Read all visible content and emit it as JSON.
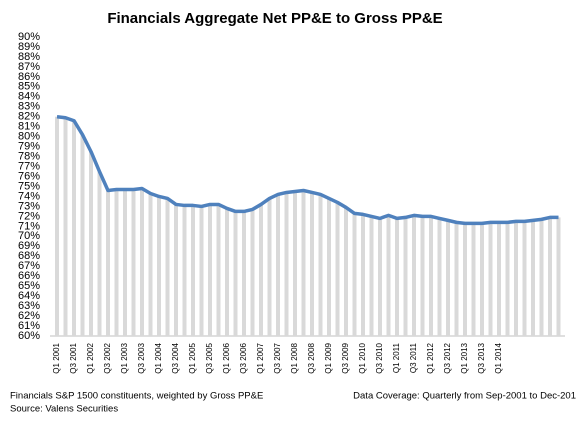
{
  "chart_data": {
    "type": "line",
    "title": "Financials  Aggregate  Net PP&E to Gross PP&E",
    "categories": [
      "Q1 2001",
      null,
      "Q3 2001",
      null,
      "Q1 2002",
      null,
      "Q3 2002",
      null,
      "Q1 2003",
      null,
      "Q3 2003",
      null,
      "Q1 2004",
      null,
      "Q3 2004",
      null,
      "Q1 2005",
      null,
      "Q3 2005",
      null,
      "Q1 2006",
      null,
      "Q3 2006",
      null,
      "Q1 2007",
      null,
      "Q3 2007",
      null,
      "Q1 2008",
      null,
      "Q3 2008",
      null,
      "Q1 2009",
      null,
      "Q3 2009",
      null,
      "Q1 2010",
      null,
      "Q3 2010",
      null,
      "Q1 2011",
      null,
      "Q3 2011",
      null,
      "Q1 2012",
      null,
      "Q3 2012",
      null,
      "Q1 2013",
      null,
      "Q3 2013",
      null,
      "Q1 2014",
      null,
      null,
      null,
      null,
      null,
      null,
      null
    ],
    "series": [
      {
        "name": "Net PP&E to Gross PP&E",
        "color": "#4f81bd",
        "values": [
          82.0,
          81.9,
          81.6,
          80.2,
          78.5,
          76.5,
          74.6,
          74.7,
          74.7,
          74.7,
          74.8,
          74.3,
          74.0,
          73.8,
          73.2,
          73.1,
          73.1,
          73.0,
          73.2,
          73.2,
          72.8,
          72.5,
          72.5,
          72.7,
          73.2,
          73.8,
          74.2,
          74.4,
          74.5,
          74.6,
          74.4,
          74.2,
          73.8,
          73.4,
          72.9,
          72.3,
          72.2,
          72.0,
          71.8,
          72.1,
          71.8,
          71.9,
          72.1,
          72.0,
          72.0,
          71.8,
          71.6,
          71.4,
          71.3,
          71.3,
          71.3,
          71.4,
          71.4,
          71.4,
          71.5,
          71.5,
          71.6,
          71.7,
          71.9,
          71.9
        ]
      }
    ],
    "fill_color": "#d9d9d9",
    "ylim": [
      60,
      90
    ],
    "yticks": [
      {
        "value": 60,
        "label": "60%"
      },
      {
        "value": 61,
        "label": "61%"
      },
      {
        "value": 62,
        "label": "62%"
      },
      {
        "value": 63,
        "label": "63%"
      },
      {
        "value": 64,
        "label": "64%"
      },
      {
        "value": 65,
        "label": "65%"
      },
      {
        "value": 66,
        "label": "66%"
      },
      {
        "value": 67,
        "label": "67%"
      },
      {
        "value": 68,
        "label": "68%"
      },
      {
        "value": 69,
        "label": "69%"
      },
      {
        "value": 70,
        "label": "70%"
      },
      {
        "value": 71,
        "label": "71%"
      },
      {
        "value": 72,
        "label": "72%"
      },
      {
        "value": 73,
        "label": "73%"
      },
      {
        "value": 74,
        "label": "74%"
      },
      {
        "value": 75,
        "label": "75%"
      },
      {
        "value": 76,
        "label": "76%"
      },
      {
        "value": 77,
        "label": "77%"
      },
      {
        "value": 78,
        "label": "78%"
      },
      {
        "value": 79,
        "label": "79%"
      },
      {
        "value": 80,
        "label": "80%"
      },
      {
        "value": 81,
        "label": "81%"
      },
      {
        "value": 82,
        "label": "82%"
      },
      {
        "value": 83,
        "label": "83%"
      },
      {
        "value": 84,
        "label": "84%"
      },
      {
        "value": 85,
        "label": "85%"
      },
      {
        "value": 86,
        "label": "86%"
      },
      {
        "value": 87,
        "label": "87%"
      },
      {
        "value": 88,
        "label": "88%"
      },
      {
        "value": 89,
        "label": "89%"
      },
      {
        "value": 90,
        "label": "90%"
      }
    ],
    "footnote_left": [
      "Financials S&P 1500 constituents, weighted by Gross PP&E",
      "Source: Valens Securities"
    ],
    "footnote_right": "Data Coverage: Quarterly from Sep-2001 to Dec-201"
  }
}
